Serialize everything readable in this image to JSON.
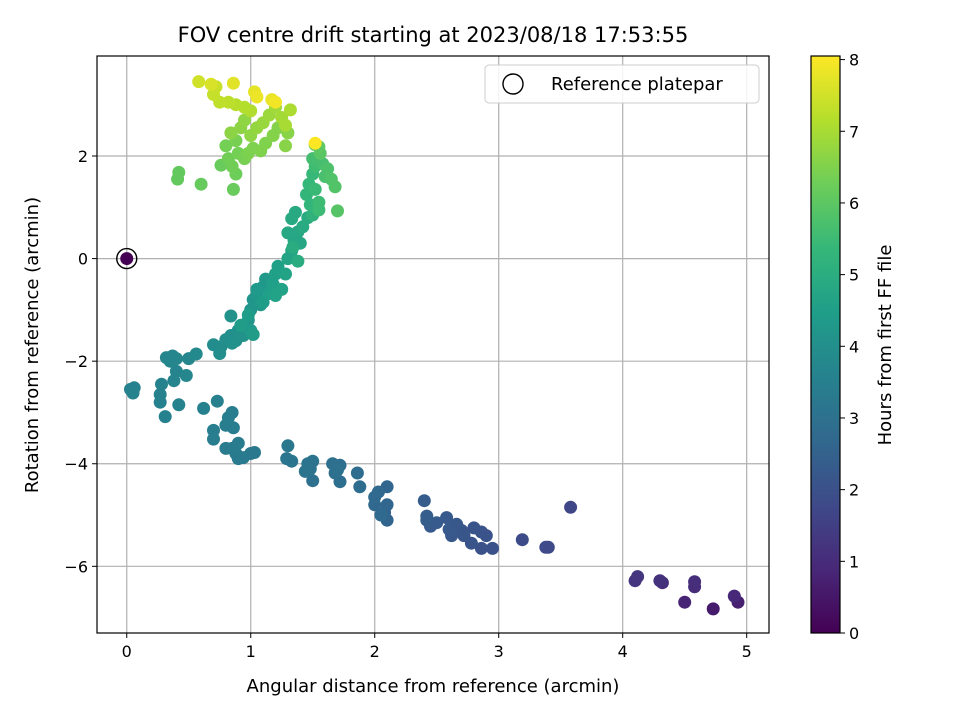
{
  "chart_data": {
    "type": "scatter",
    "title": "FOV centre drift starting at 2023/08/18 17:53:55",
    "xlabel": "Angular distance from reference (arcmin)",
    "ylabel": "Rotation from reference (arcmin)",
    "xlim": [
      -0.24,
      5.18
    ],
    "ylim": [
      -7.3,
      3.95
    ],
    "xticks": [
      0,
      1,
      2,
      3,
      4,
      5
    ],
    "xtick_labels": [
      "0",
      "1",
      "2",
      "3",
      "4",
      "5"
    ],
    "yticks": [
      -6,
      -4,
      -2,
      0,
      2
    ],
    "ytick_labels": [
      "−6",
      "−4",
      "−2",
      "0",
      "2"
    ],
    "grid": true,
    "legend": {
      "position": "top-right",
      "entries": [
        "Reference platepar"
      ]
    },
    "colorbar": {
      "label": "Hours from first FF file",
      "range": [
        0,
        8.05
      ],
      "ticks": [
        0,
        1,
        2,
        3,
        4,
        5,
        6,
        7,
        8
      ],
      "colormap": "viridis"
    },
    "reference_point": {
      "x": 0,
      "y": 0,
      "hours": 0
    },
    "series": [
      {
        "marker": "filled-circle",
        "color_by": "hours",
        "points": [
          [
            4.73,
            -6.83,
            0.6
          ],
          [
            4.93,
            -6.7,
            0.7
          ],
          [
            4.5,
            -6.7,
            0.8
          ],
          [
            4.9,
            -6.58,
            0.9
          ],
          [
            4.58,
            -6.4,
            1.0
          ],
          [
            4.58,
            -6.3,
            1.05
          ],
          [
            4.32,
            -6.32,
            1.1
          ],
          [
            4.3,
            -6.28,
            1.15
          ],
          [
            4.1,
            -6.28,
            1.2
          ],
          [
            4.12,
            -6.2,
            1.25
          ],
          [
            3.58,
            -4.85,
            1.7
          ],
          [
            3.4,
            -5.63,
            1.75
          ],
          [
            3.38,
            -5.63,
            1.8
          ],
          [
            3.19,
            -5.48,
            1.85
          ],
          [
            2.95,
            -5.65,
            2.0
          ],
          [
            2.86,
            -5.65,
            2.0
          ],
          [
            2.9,
            -5.4,
            2.05
          ],
          [
            2.86,
            -5.33,
            2.05
          ],
          [
            2.8,
            -5.25,
            2.1
          ],
          [
            2.78,
            -5.55,
            2.1
          ],
          [
            2.72,
            -5.4,
            2.15
          ],
          [
            2.7,
            -5.3,
            2.15
          ],
          [
            2.66,
            -5.18,
            2.2
          ],
          [
            2.62,
            -5.4,
            2.2
          ],
          [
            2.6,
            -5.28,
            2.25
          ],
          [
            2.58,
            -5.05,
            2.25
          ],
          [
            2.5,
            -5.15,
            2.3
          ],
          [
            2.45,
            -5.22,
            2.3
          ],
          [
            2.42,
            -5.1,
            2.35
          ],
          [
            2.4,
            -4.72,
            2.35
          ],
          [
            2.42,
            -5.02,
            2.4
          ],
          [
            2.1,
            -5.1,
            2.6
          ],
          [
            2.08,
            -4.95,
            2.6
          ],
          [
            2.1,
            -4.8,
            2.65
          ],
          [
            2.1,
            -4.45,
            2.65
          ],
          [
            2.03,
            -4.55,
            2.7
          ],
          [
            2.0,
            -4.8,
            2.7
          ],
          [
            2.0,
            -4.65,
            2.75
          ],
          [
            2.05,
            -5.0,
            2.75
          ],
          [
            1.88,
            -4.45,
            2.85
          ],
          [
            1.86,
            -4.18,
            2.85
          ],
          [
            1.72,
            -4.35,
            2.9
          ],
          [
            1.72,
            -4.03,
            2.9
          ],
          [
            1.68,
            -4.18,
            2.95
          ],
          [
            1.66,
            -4.0,
            2.95
          ],
          [
            1.7,
            -4.12,
            3.0
          ],
          [
            1.5,
            -4.33,
            3.0
          ],
          [
            1.48,
            -4.1,
            3.05
          ],
          [
            1.46,
            -4.0,
            3.05
          ],
          [
            1.5,
            -3.95,
            3.1
          ],
          [
            1.44,
            -4.15,
            3.1
          ],
          [
            1.33,
            -3.95,
            3.15
          ],
          [
            1.29,
            -3.9,
            3.15
          ],
          [
            1.3,
            -3.65,
            3.2
          ],
          [
            1.03,
            -3.78,
            3.25
          ],
          [
            1.0,
            -3.8,
            3.25
          ],
          [
            0.94,
            -3.88,
            3.3
          ],
          [
            0.9,
            -3.9,
            3.3
          ],
          [
            0.88,
            -3.8,
            3.3
          ],
          [
            0.85,
            -3.7,
            3.35
          ],
          [
            0.9,
            -3.6,
            3.35
          ],
          [
            0.8,
            -3.7,
            3.35
          ],
          [
            0.86,
            -3.3,
            3.4
          ],
          [
            0.82,
            -3.1,
            3.4
          ],
          [
            0.85,
            -3.0,
            3.4
          ],
          [
            0.8,
            -3.25,
            3.45
          ],
          [
            0.7,
            -3.35,
            3.45
          ],
          [
            0.7,
            -3.52,
            3.45
          ],
          [
            0.73,
            -2.78,
            3.5
          ],
          [
            0.62,
            -2.92,
            3.5
          ],
          [
            0.31,
            -3.08,
            3.55
          ],
          [
            0.27,
            -2.8,
            3.55
          ],
          [
            0.42,
            -2.85,
            3.6
          ],
          [
            0.27,
            -2.65,
            3.6
          ],
          [
            0.28,
            -2.45,
            3.6
          ],
          [
            0.4,
            -2.2,
            3.65
          ],
          [
            0.38,
            -2.38,
            3.65
          ],
          [
            0.35,
            -2.0,
            3.7
          ],
          [
            0.37,
            -1.9,
            3.7
          ],
          [
            0.32,
            -1.93,
            3.7
          ],
          [
            0.4,
            -1.95,
            3.75
          ],
          [
            0.5,
            -1.95,
            3.75
          ],
          [
            0.48,
            -2.28,
            3.75
          ],
          [
            0.56,
            -1.86,
            3.8
          ],
          [
            0.06,
            -2.52,
            3.55
          ],
          [
            0.03,
            -2.55,
            3.55
          ],
          [
            0.05,
            -2.62,
            3.6
          ],
          [
            0.7,
            -1.68,
            3.9
          ],
          [
            0.76,
            -1.72,
            3.9
          ],
          [
            0.8,
            -1.58,
            3.95
          ],
          [
            0.75,
            -1.85,
            3.95
          ],
          [
            0.84,
            -1.5,
            4.0
          ],
          [
            0.88,
            -1.6,
            4.0
          ],
          [
            0.85,
            -1.65,
            4.05
          ],
          [
            0.9,
            -1.4,
            4.05
          ],
          [
            0.84,
            -1.12,
            4.1
          ],
          [
            0.94,
            -1.5,
            4.1
          ],
          [
            0.98,
            -1.2,
            4.15
          ],
          [
            1.0,
            -1.0,
            4.2
          ],
          [
            1.02,
            -0.8,
            4.2
          ],
          [
            1.05,
            -0.7,
            4.25
          ],
          [
            1.08,
            -0.9,
            4.25
          ],
          [
            1.1,
            -0.55,
            4.3
          ],
          [
            1.12,
            -0.4,
            4.3
          ],
          [
            1.05,
            -0.6,
            4.35
          ],
          [
            1.0,
            -1.4,
            4.35
          ],
          [
            1.02,
            -1.48,
            4.4
          ],
          [
            0.92,
            -1.3,
            4.4
          ],
          [
            0.98,
            -1.1,
            4.45
          ],
          [
            1.1,
            -0.85,
            4.45
          ],
          [
            1.15,
            -0.68,
            4.5
          ],
          [
            1.18,
            -0.5,
            4.5
          ],
          [
            1.2,
            -0.3,
            4.55
          ],
          [
            1.22,
            -0.15,
            4.55
          ],
          [
            1.25,
            -0.6,
            4.6
          ],
          [
            1.2,
            -0.72,
            4.6
          ],
          [
            1.28,
            -0.3,
            4.65
          ],
          [
            1.3,
            0.0,
            4.7
          ],
          [
            1.33,
            0.15,
            4.7
          ],
          [
            1.35,
            0.35,
            4.75
          ],
          [
            1.4,
            0.3,
            4.75
          ],
          [
            1.38,
            0.52,
            4.8
          ],
          [
            1.3,
            0.5,
            4.8
          ],
          [
            1.33,
            0.78,
            4.85
          ],
          [
            1.36,
            0.9,
            4.85
          ],
          [
            1.42,
            0.62,
            4.9
          ],
          [
            1.46,
            0.8,
            4.9
          ],
          [
            1.38,
            -0.05,
            4.95
          ],
          [
            1.34,
            0.22,
            4.95
          ],
          [
            1.5,
            0.85,
            5.2
          ],
          [
            1.48,
            1.05,
            5.25
          ],
          [
            1.45,
            1.25,
            5.3
          ],
          [
            1.47,
            1.45,
            5.35
          ],
          [
            1.5,
            1.65,
            5.4
          ],
          [
            1.52,
            1.35,
            5.45
          ],
          [
            1.55,
            1.1,
            5.5
          ],
          [
            1.55,
            0.95,
            5.5
          ],
          [
            1.52,
            1.8,
            5.55
          ],
          [
            1.5,
            1.95,
            5.6
          ],
          [
            1.58,
            1.85,
            5.65
          ],
          [
            1.6,
            1.6,
            5.7
          ],
          [
            1.62,
            1.75,
            5.75
          ],
          [
            1.65,
            1.55,
            5.8
          ],
          [
            1.68,
            1.4,
            5.85
          ],
          [
            1.7,
            0.93,
            5.9
          ],
          [
            1.56,
            2.05,
            5.95
          ],
          [
            1.55,
            2.18,
            6.0
          ],
          [
            1.52,
            2.22,
            6.05
          ],
          [
            0.42,
            1.68,
            6.1
          ],
          [
            0.41,
            1.55,
            6.1
          ],
          [
            0.6,
            1.45,
            6.15
          ],
          [
            0.76,
            1.82,
            6.2
          ],
          [
            0.86,
            1.35,
            6.2
          ],
          [
            0.88,
            1.65,
            6.25
          ],
          [
            0.85,
            1.8,
            6.3
          ],
          [
            0.82,
            1.95,
            6.3
          ],
          [
            0.9,
            2.05,
            6.35
          ],
          [
            0.8,
            2.2,
            6.35
          ],
          [
            0.88,
            2.3,
            6.4
          ],
          [
            0.95,
            1.95,
            6.4
          ],
          [
            0.98,
            2.05,
            6.45
          ],
          [
            1.02,
            2.15,
            6.45
          ],
          [
            1.08,
            2.1,
            6.5
          ],
          [
            1.12,
            2.25,
            6.5
          ],
          [
            1.18,
            2.4,
            6.55
          ],
          [
            1.22,
            2.55,
            6.55
          ],
          [
            1.28,
            2.2,
            6.6
          ],
          [
            1.3,
            2.45,
            6.6
          ],
          [
            0.92,
            2.55,
            6.65
          ],
          [
            0.84,
            2.45,
            6.65
          ],
          [
            0.95,
            2.7,
            6.7
          ],
          [
            1.0,
            2.4,
            6.7
          ],
          [
            1.05,
            2.55,
            6.75
          ],
          [
            1.1,
            2.65,
            6.8
          ],
          [
            1.15,
            2.8,
            6.85
          ],
          [
            1.2,
            2.95,
            6.9
          ],
          [
            1.25,
            2.75,
            6.95
          ],
          [
            1.28,
            2.6,
            7.0
          ],
          [
            1.32,
            2.9,
            7.05
          ],
          [
            1.0,
            2.88,
            7.1
          ],
          [
            0.95,
            2.95,
            7.15
          ],
          [
            0.88,
            3.0,
            7.2
          ],
          [
            0.82,
            3.05,
            7.25
          ],
          [
            0.75,
            3.05,
            7.3
          ],
          [
            0.7,
            3.2,
            7.35
          ],
          [
            0.72,
            3.35,
            7.4
          ],
          [
            0.58,
            3.45,
            7.5
          ],
          [
            0.68,
            3.4,
            7.6
          ],
          [
            0.86,
            3.42,
            7.7
          ],
          [
            1.03,
            3.25,
            7.75
          ],
          [
            1.17,
            3.1,
            7.8
          ],
          [
            1.05,
            3.15,
            7.85
          ],
          [
            1.2,
            3.05,
            7.9
          ],
          [
            1.52,
            2.25,
            8.05
          ]
        ]
      }
    ]
  }
}
